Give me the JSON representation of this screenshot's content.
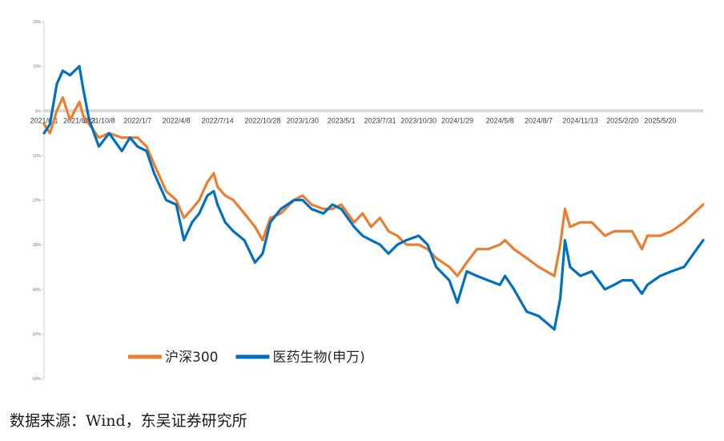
{
  "chart_data": {
    "type": "line",
    "title": "",
    "xlabel": "",
    "ylabel": "",
    "ylim": [
      -60,
      20
    ],
    "y_ticks": [
      20,
      10,
      0,
      -10,
      -20,
      -30,
      -40,
      -50,
      -60
    ],
    "y_tick_labels": [
      "20%",
      "10%",
      "0%",
      "-10%",
      "-20%",
      "-30%",
      "-40%",
      "-50%",
      "-60%"
    ],
    "x_range": [
      "2021-06-01",
      "2025-08-29"
    ],
    "x_tick_dates": [
      "2021-06-01",
      "2021-08-23",
      "2021-10-08",
      "2022-01-07",
      "2022-04-08",
      "2022-07-14",
      "2022-10-28",
      "2023-01-30",
      "2023-05-01",
      "2023-07-31",
      "2023-10-30",
      "2024-01-29",
      "2024-05-08",
      "2024-08-07",
      "2024-11-13",
      "2025-02-20",
      "2025-05-20"
    ],
    "x_tick_labels": [
      "2021/6/1",
      "2021/8/23",
      "2021/10/8",
      "2022/1/7",
      "2022/4/8",
      "2022/7/14",
      "2022/10/28",
      "2023/1/30",
      "2023/5/1",
      "2023/7/31",
      "2023/10/30",
      "2024/1/29",
      "2024/5/8",
      "2024/8/7",
      "2024/11/13",
      "2025/2/20",
      "2025/5/20"
    ],
    "grid": false,
    "legend_position": "bottom",
    "series": [
      {
        "name": "沪深300",
        "color": "#ED7D31",
        "points": [
          [
            "2021-06-01",
            -3
          ],
          [
            "2021-06-15",
            -5
          ],
          [
            "2021-07-01",
            0
          ],
          [
            "2021-07-15",
            3
          ],
          [
            "2021-08-01",
            -2
          ],
          [
            "2021-08-23",
            2
          ],
          [
            "2021-09-01",
            -1
          ],
          [
            "2021-09-15",
            -3
          ],
          [
            "2021-10-08",
            -6
          ],
          [
            "2021-11-01",
            -5
          ],
          [
            "2021-12-01",
            -6
          ],
          [
            "2021-12-20",
            -6
          ],
          [
            "2022-01-07",
            -6
          ],
          [
            "2022-01-28",
            -8
          ],
          [
            "2022-02-15",
            -12
          ],
          [
            "2022-03-15",
            -18
          ],
          [
            "2022-04-08",
            -20
          ],
          [
            "2022-04-26",
            -24
          ],
          [
            "2022-05-15",
            -22
          ],
          [
            "2022-06-01",
            -20
          ],
          [
            "2022-06-20",
            -16
          ],
          [
            "2022-07-05",
            -14
          ],
          [
            "2022-07-14",
            -17
          ],
          [
            "2022-08-01",
            -19
          ],
          [
            "2022-08-20",
            -20
          ],
          [
            "2022-09-15",
            -23
          ],
          [
            "2022-10-10",
            -26
          ],
          [
            "2022-10-28",
            -29
          ],
          [
            "2022-11-15",
            -24
          ],
          [
            "2022-12-10",
            -23
          ],
          [
            "2023-01-10",
            -20
          ],
          [
            "2023-01-30",
            -19
          ],
          [
            "2023-02-20",
            -21
          ],
          [
            "2023-03-20",
            -22
          ],
          [
            "2023-04-10",
            -22
          ],
          [
            "2023-05-01",
            -21
          ],
          [
            "2023-05-31",
            -25
          ],
          [
            "2023-06-20",
            -23
          ],
          [
            "2023-07-10",
            -26
          ],
          [
            "2023-07-31",
            -24
          ],
          [
            "2023-08-20",
            -27
          ],
          [
            "2023-09-10",
            -28
          ],
          [
            "2023-10-01",
            -30
          ],
          [
            "2023-10-30",
            -30
          ],
          [
            "2023-11-20",
            -31
          ],
          [
            "2023-12-10",
            -33
          ],
          [
            "2024-01-10",
            -35
          ],
          [
            "2024-01-29",
            -37
          ],
          [
            "2024-02-20",
            -34
          ],
          [
            "2024-03-15",
            -31
          ],
          [
            "2024-04-10",
            -31
          ],
          [
            "2024-05-08",
            -30
          ],
          [
            "2024-05-20",
            -29
          ],
          [
            "2024-06-10",
            -31
          ],
          [
            "2024-07-10",
            -33
          ],
          [
            "2024-08-07",
            -35
          ],
          [
            "2024-09-13",
            -37
          ],
          [
            "2024-09-27",
            -30
          ],
          [
            "2024-10-08",
            -22
          ],
          [
            "2024-10-20",
            -26
          ],
          [
            "2024-11-13",
            -25
          ],
          [
            "2024-12-10",
            -25
          ],
          [
            "2025-01-10",
            -28
          ],
          [
            "2025-02-01",
            -27
          ],
          [
            "2025-02-20",
            -27
          ],
          [
            "2025-03-15",
            -27
          ],
          [
            "2025-04-07",
            -31
          ],
          [
            "2025-04-20",
            -28
          ],
          [
            "2025-05-20",
            -28
          ],
          [
            "2025-06-15",
            -27
          ],
          [
            "2025-07-15",
            -25
          ],
          [
            "2025-08-29",
            -21
          ]
        ]
      },
      {
        "name": "医药生物(申万)",
        "color": "#0070C0",
        "points": [
          [
            "2021-06-01",
            -5
          ],
          [
            "2021-06-15",
            -3
          ],
          [
            "2021-07-01",
            6
          ],
          [
            "2021-07-15",
            9
          ],
          [
            "2021-08-01",
            8
          ],
          [
            "2021-08-23",
            10
          ],
          [
            "2021-09-01",
            5
          ],
          [
            "2021-09-15",
            -2
          ],
          [
            "2021-10-08",
            -8
          ],
          [
            "2021-11-01",
            -5
          ],
          [
            "2021-12-01",
            -9
          ],
          [
            "2021-12-20",
            -6
          ],
          [
            "2022-01-07",
            -8
          ],
          [
            "2022-01-28",
            -9
          ],
          [
            "2022-02-15",
            -14
          ],
          [
            "2022-03-15",
            -20
          ],
          [
            "2022-04-08",
            -21
          ],
          [
            "2022-04-26",
            -29
          ],
          [
            "2022-05-15",
            -25
          ],
          [
            "2022-06-01",
            -23
          ],
          [
            "2022-06-20",
            -19
          ],
          [
            "2022-07-05",
            -18
          ],
          [
            "2022-07-14",
            -21
          ],
          [
            "2022-08-01",
            -25
          ],
          [
            "2022-08-20",
            -27
          ],
          [
            "2022-09-15",
            -29
          ],
          [
            "2022-10-10",
            -34
          ],
          [
            "2022-10-28",
            -32
          ],
          [
            "2022-11-15",
            -25
          ],
          [
            "2022-12-10",
            -22
          ],
          [
            "2023-01-10",
            -20
          ],
          [
            "2023-01-30",
            -20
          ],
          [
            "2023-02-20",
            -22
          ],
          [
            "2023-03-20",
            -23
          ],
          [
            "2023-04-10",
            -21
          ],
          [
            "2023-05-01",
            -22
          ],
          [
            "2023-05-31",
            -26
          ],
          [
            "2023-06-20",
            -28
          ],
          [
            "2023-07-10",
            -29
          ],
          [
            "2023-07-31",
            -30
          ],
          [
            "2023-08-20",
            -32
          ],
          [
            "2023-09-10",
            -30
          ],
          [
            "2023-10-01",
            -29
          ],
          [
            "2023-10-30",
            -28
          ],
          [
            "2023-11-20",
            -30
          ],
          [
            "2023-12-10",
            -35
          ],
          [
            "2024-01-10",
            -38
          ],
          [
            "2024-01-29",
            -43
          ],
          [
            "2024-02-20",
            -36
          ],
          [
            "2024-03-15",
            -37
          ],
          [
            "2024-04-10",
            -38
          ],
          [
            "2024-05-08",
            -39
          ],
          [
            "2024-05-20",
            -37
          ],
          [
            "2024-06-10",
            -40
          ],
          [
            "2024-07-10",
            -45
          ],
          [
            "2024-08-07",
            -46
          ],
          [
            "2024-09-13",
            -49
          ],
          [
            "2024-09-27",
            -42
          ],
          [
            "2024-10-08",
            -29
          ],
          [
            "2024-10-20",
            -35
          ],
          [
            "2024-11-13",
            -37
          ],
          [
            "2024-12-10",
            -36
          ],
          [
            "2025-01-10",
            -40
          ],
          [
            "2025-02-01",
            -39
          ],
          [
            "2025-02-20",
            -38
          ],
          [
            "2025-03-15",
            -38
          ],
          [
            "2025-04-07",
            -41
          ],
          [
            "2025-04-20",
            -39
          ],
          [
            "2025-05-20",
            -37
          ],
          [
            "2025-06-15",
            -36
          ],
          [
            "2025-07-15",
            -35
          ],
          [
            "2025-08-29",
            -29
          ]
        ]
      }
    ]
  },
  "source_text": "数据来源：Wind，东吴证券研究所"
}
